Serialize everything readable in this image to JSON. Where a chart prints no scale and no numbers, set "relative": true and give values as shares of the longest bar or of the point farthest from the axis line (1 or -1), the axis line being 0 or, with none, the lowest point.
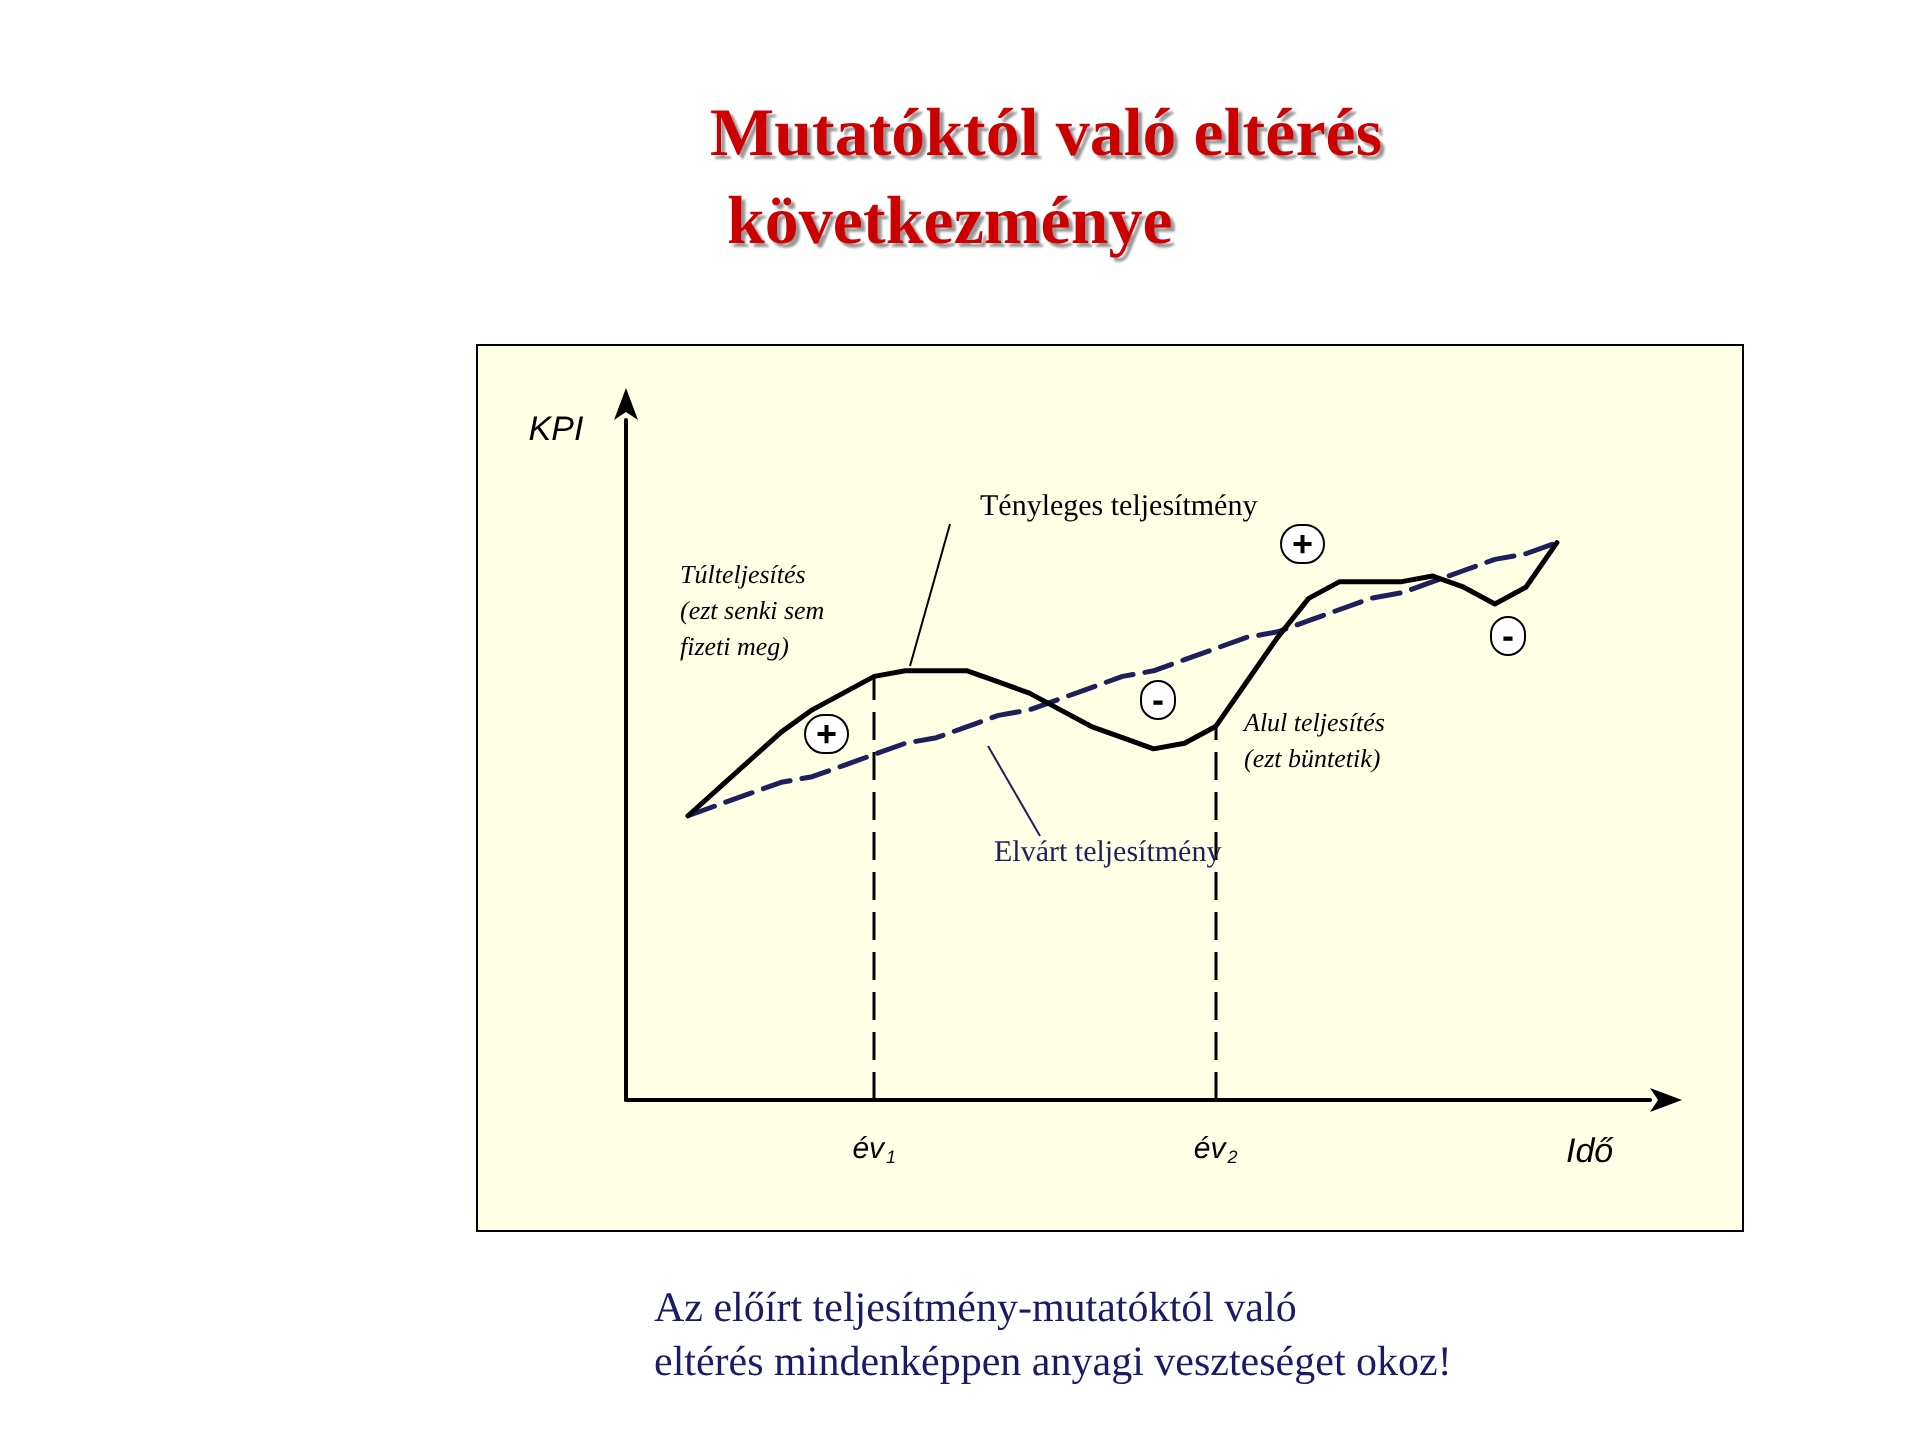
{
  "chart_data": {
    "type": "line",
    "title": "Mutatóktól való eltérés következménye",
    "ylabel": "KPI",
    "xlabel": "Idő",
    "relative": true,
    "categories": [
      null,
      null,
      null,
      null,
      null,
      null,
      null,
      null,
      "év$_{1}$",
      null,
      null,
      null,
      null,
      null,
      null,
      null,
      null,
      null,
      null,
      "év$_{2}$",
      null,
      null,
      null,
      null,
      null,
      null,
      null,
      null,
      null,
      null,
      null,
      null,
      null,
      null
    ],
    "series": [
      {
        "name": "Tényleges teljesítmény",
        "color": "#000000",
        "line_style": "solid",
        "values": [
          null,
          null,
          0.51,
          0.56,
          0.61,
          0.66,
          0.7,
          0.73,
          0.76,
          0.77,
          0.77,
          0.77,
          0.75,
          0.73,
          0.7,
          0.67,
          0.65,
          0.63,
          0.64,
          0.67,
          0.75,
          0.83,
          0.9,
          0.93,
          0.93,
          0.93,
          0.94,
          0.92,
          0.89,
          0.92,
          1.0,
          null,
          null,
          null
        ]
      },
      {
        "name": "Elvárt teljesítmény",
        "color": "#1f1f5c",
        "line_style": "dashed",
        "values": [
          null,
          null,
          0.51,
          0.53,
          0.55,
          0.57,
          0.58,
          0.6,
          0.62,
          0.64,
          0.65,
          0.67,
          0.69,
          0.7,
          0.72,
          0.74,
          0.76,
          0.77,
          0.79,
          0.81,
          0.83,
          0.84,
          0.86,
          0.88,
          0.9,
          0.91,
          0.93,
          0.95,
          0.97,
          0.98,
          1.0,
          null,
          null,
          null
        ]
      }
    ],
    "ref_lines": [
      {
        "axis": "x",
        "value": "év$_{1}$",
        "line_style": "dashed"
      },
      {
        "axis": "x",
        "value": "év$_{2}$",
        "line_style": "dashed"
      }
    ],
    "annotations": [
      "Túlteljesítés\n(ezt senki sem\nfizeti meg)",
      "+",
      "-",
      "+",
      "-",
      "Alul teljesítés\n(ezt büntetik)",
      "Az előírt teljesítmény-mutatóktól való eltérés mindenképpen anyagi veszteséget okoz!"
    ],
    "marker": "none",
    "legend": false,
    "grid": false
  }
}
